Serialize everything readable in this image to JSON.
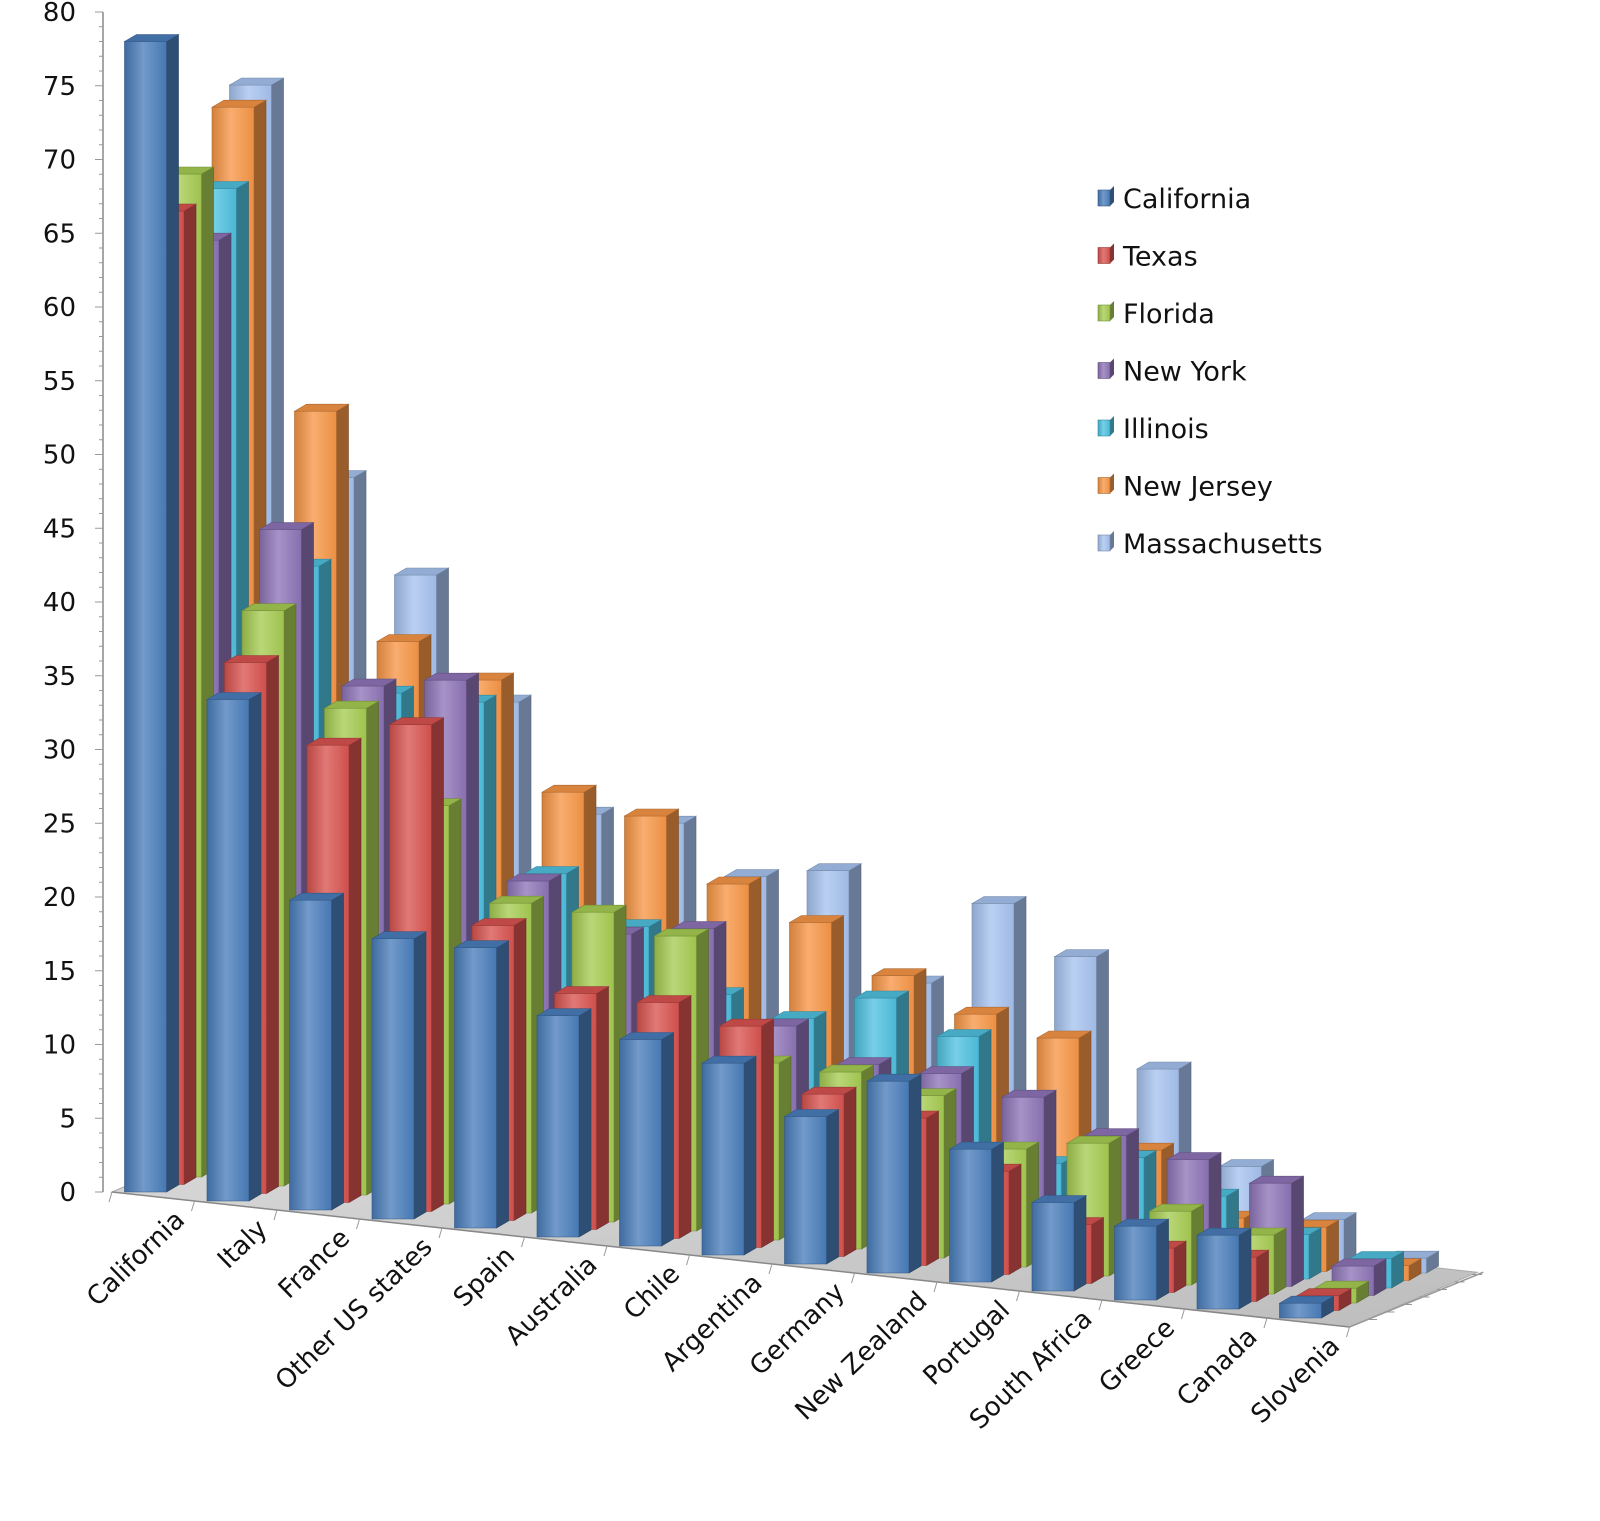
{
  "chart_data": {
    "type": "bar",
    "subtype": "3d-column",
    "title": "",
    "xlabel": "",
    "ylabel": "",
    "ylim": [
      0,
      80
    ],
    "yticks": [
      0,
      5,
      10,
      15,
      20,
      25,
      30,
      35,
      40,
      45,
      50,
      55,
      60,
      65,
      70,
      75,
      80
    ],
    "grid": false,
    "legend_position": "right",
    "categories": [
      "California",
      "Italy",
      "France",
      "Other US states",
      "Spain",
      "Australia",
      "Chile",
      "Argentina",
      "Germany",
      "New Zealand",
      "Portugal",
      "South Africa",
      "Greece",
      "Canada",
      "Slovenia"
    ],
    "series": [
      {
        "name": "California",
        "color": "#4a7ebb",
        "values": [
          78,
          34,
          21,
          19,
          19,
          15,
          14,
          13,
          10,
          13,
          9,
          6,
          5,
          5,
          1
        ]
      },
      {
        "name": "Texas",
        "color": "#d9534f",
        "values": [
          66,
          36,
          31,
          33,
          20,
          16,
          16,
          15,
          11,
          10,
          7,
          4,
          3,
          3,
          1
        ]
      },
      {
        "name": "Florida",
        "color": "#a6cc52",
        "values": [
          68,
          39,
          33,
          27,
          21,
          21,
          20,
          12,
          12,
          11,
          8,
          9,
          5,
          4,
          1
        ]
      },
      {
        "name": "New York",
        "color": "#8e74b7",
        "values": [
          63,
          44,
          34,
          35,
          22,
          19,
          20,
          14,
          12,
          12,
          11,
          9,
          8,
          7,
          2
        ]
      },
      {
        "name": "Illinois",
        "color": "#4fc1e0",
        "values": [
          66,
          41,
          33,
          33,
          22,
          19,
          15,
          14,
          16,
          14,
          6,
          7,
          5,
          3,
          2
        ]
      },
      {
        "name": "New Jersey",
        "color": "#f79646",
        "values": [
          71,
          51,
          36,
          34,
          27,
          26,
          22,
          20,
          17,
          15,
          14,
          7,
          3,
          3,
          1
        ]
      },
      {
        "name": "Massachusetts",
        "color": "#a7c3f0",
        "values": [
          72,
          46,
          40,
          32,
          25,
          25,
          22,
          23,
          16,
          22,
          19,
          12,
          6,
          3,
          1
        ]
      }
    ]
  }
}
